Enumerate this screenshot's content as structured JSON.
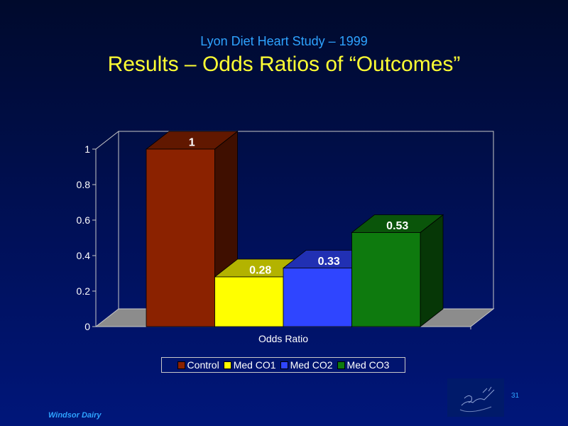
{
  "slide": {
    "subtitle": "Lyon Diet Heart Study – 1999",
    "title": "Results – Odds Ratios of “Outcomes”",
    "footer": "Windsor Dairy",
    "page_number": "31"
  },
  "colors": {
    "background": "#001058",
    "subtitle": "#2ea3ff",
    "title": "#ffff33"
  },
  "chart_data": {
    "type": "bar",
    "categories": [
      "Odds Ratio"
    ],
    "xlabel": "Odds Ratio",
    "ylabel": "",
    "ylim": [
      0,
      1
    ],
    "yticks": [
      "0",
      "0.2",
      "0.4",
      "0.6",
      "0.8",
      "1"
    ],
    "grid": false,
    "three_d": true,
    "legend": "bottom",
    "series": [
      {
        "name": "Control",
        "values": [
          1
        ],
        "label": "1",
        "color": "#8b2200"
      },
      {
        "name": "Med CO1",
        "values": [
          0.28
        ],
        "label": "0.28",
        "color": "#ffff00"
      },
      {
        "name": "Med CO2",
        "values": [
          0.33
        ],
        "label": "0.33",
        "color": "#2f45ff"
      },
      {
        "name": "Med CO3",
        "values": [
          0.53
        ],
        "label": "0.53",
        "color": "#0e7a0e"
      }
    ]
  }
}
